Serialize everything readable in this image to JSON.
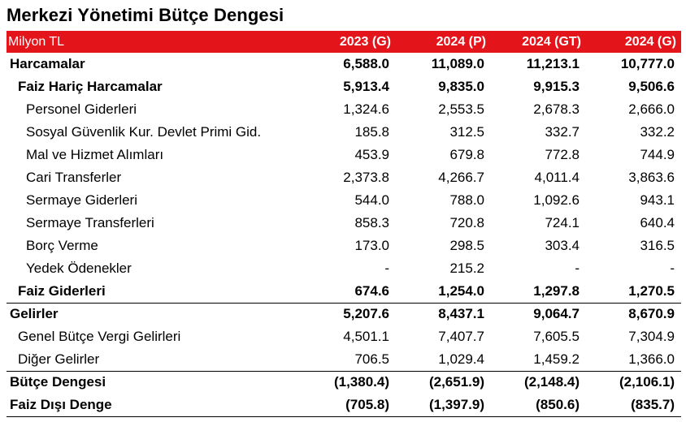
{
  "title": "Merkezi Yönetimi Bütçe Dengesi",
  "header": {
    "unit": "Milyon TL",
    "columns": [
      "2023 (G)",
      "2024 (P)",
      "2024 (GT)",
      "2024 (G)"
    ]
  },
  "rows": [
    {
      "label": "Harcamalar",
      "values": [
        "6,588.0",
        "11,089.0",
        "11,213.1",
        "10,777.0"
      ]
    },
    {
      "label": "Faiz Hariç Harcamalar",
      "values": [
        "5,913.4",
        "9,835.0",
        "9,915.3",
        "9,506.6"
      ]
    },
    {
      "label": "Personel Giderleri",
      "values": [
        "1,324.6",
        "2,553.5",
        "2,678.3",
        "2,666.0"
      ]
    },
    {
      "label": "Sosyal Güvenlik Kur. Devlet Primi Gid.",
      "values": [
        "185.8",
        "312.5",
        "332.7",
        "332.2"
      ]
    },
    {
      "label": "Mal ve Hizmet Alımları",
      "values": [
        "453.9",
        "679.8",
        "772.8",
        "744.9"
      ]
    },
    {
      "label": "Cari Transferler",
      "values": [
        "2,373.8",
        "4,266.7",
        "4,011.4",
        "3,863.6"
      ]
    },
    {
      "label": "Sermaye Giderleri",
      "values": [
        "544.0",
        "788.0",
        "1,092.6",
        "943.1"
      ]
    },
    {
      "label": "Sermaye Transferleri",
      "values": [
        "858.3",
        "720.8",
        "724.1",
        "640.4"
      ]
    },
    {
      "label": "Borç Verme",
      "values": [
        "173.0",
        "298.5",
        "303.4",
        "316.5"
      ]
    },
    {
      "label": "Yedek Ödenekler",
      "values": [
        "-",
        "215.2",
        "-",
        "-"
      ]
    },
    {
      "label": "Faiz Giderleri",
      "values": [
        "674.6",
        "1,254.0",
        "1,297.8",
        "1,270.5"
      ]
    },
    {
      "label": "Gelirler",
      "values": [
        "5,207.6",
        "8,437.1",
        "9,064.7",
        "8,670.9"
      ]
    },
    {
      "label": "Genel Bütçe Vergi Gelirleri",
      "values": [
        "4,501.1",
        "7,407.7",
        "7,605.5",
        "7,304.9"
      ]
    },
    {
      "label": "Diğer Gelirler",
      "values": [
        "706.5",
        "1,029.4",
        "1,459.2",
        "1,366.0"
      ]
    },
    {
      "label": "Bütçe Dengesi",
      "values": [
        "(1,380.4)",
        "(2,651.9)",
        "(2,148.4)",
        "(2,106.1)"
      ]
    },
    {
      "label": "Faiz Dışı Denge",
      "values": [
        "(705.8)",
        "(1,397.9)",
        "(850.6)",
        "(835.7)"
      ]
    }
  ],
  "colors": {
    "header_bg": "#e4141b",
    "header_text": "#ffffff",
    "rule": "#000000"
  }
}
